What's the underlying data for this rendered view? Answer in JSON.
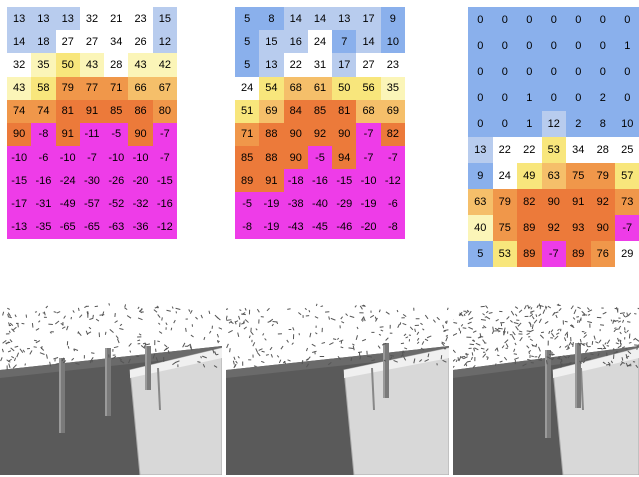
{
  "color_scale": {
    "blue": "#8ab0ec",
    "light_blue": "#b8ccee",
    "white": "#ffffff",
    "light_yellow": "#fbf5b8",
    "yellow": "#f8e67c",
    "light_orange": "#f5bf6a",
    "orange": "#f0974a",
    "dark_orange": "#ec7a3a",
    "magenta": "#ee3ce8"
  },
  "grids": [
    {
      "rows": [
        [
          13,
          13,
          13,
          32,
          21,
          23,
          15
        ],
        [
          14,
          18,
          27,
          27,
          34,
          26,
          12
        ],
        [
          32,
          35,
          50,
          43,
          28,
          43,
          42
        ],
        [
          43,
          58,
          79,
          77,
          71,
          66,
          67
        ],
        [
          74,
          74,
          81,
          91,
          85,
          86,
          80
        ],
        [
          90,
          -8,
          91,
          -11,
          -5,
          90,
          -7
        ],
        [
          -10,
          -6,
          -10,
          -7,
          -10,
          -10,
          -7
        ],
        [
          -15,
          -16,
          -24,
          -30,
          -26,
          -20,
          -15
        ],
        [
          -17,
          -31,
          -49,
          -57,
          -52,
          -32,
          -16
        ],
        [
          -13,
          -35,
          -65,
          -65,
          -63,
          -36,
          -12
        ]
      ]
    },
    {
      "rows": [
        [
          5,
          8,
          14,
          14,
          13,
          17,
          9
        ],
        [
          5,
          15,
          16,
          24,
          7,
          14,
          10
        ],
        [
          5,
          13,
          22,
          31,
          17,
          27,
          23
        ],
        [
          24,
          54,
          68,
          61,
          50,
          56,
          35
        ],
        [
          51,
          69,
          84,
          85,
          81,
          68,
          69
        ],
        [
          71,
          88,
          90,
          92,
          90,
          -7,
          82
        ],
        [
          85,
          88,
          90,
          -5,
          94,
          -7,
          -7
        ],
        [
          89,
          91,
          -18,
          -16,
          -15,
          -10,
          -12
        ],
        [
          -5,
          -19,
          -38,
          -40,
          -29,
          -19,
          -6
        ],
        [
          -8,
          -19,
          -43,
          -45,
          -46,
          -20,
          -8
        ]
      ]
    },
    {
      "rows": [
        [
          0,
          0,
          0,
          0,
          0,
          0,
          0
        ],
        [
          0,
          0,
          0,
          0,
          0,
          0,
          1
        ],
        [
          0,
          0,
          0,
          0,
          0,
          0,
          0
        ],
        [
          0,
          0,
          1,
          0,
          0,
          2,
          0
        ],
        [
          0,
          0,
          1,
          12,
          2,
          8,
          10
        ],
        [
          13,
          22,
          22,
          53,
          34,
          28,
          25
        ],
        [
          9,
          24,
          49,
          63,
          75,
          79,
          57
        ],
        [
          63,
          79,
          82,
          90,
          91,
          92,
          73
        ],
        [
          40,
          75,
          89,
          92,
          93,
          90,
          -7
        ],
        [
          5,
          53,
          89,
          -7,
          89,
          76,
          29
        ]
      ]
    }
  ],
  "scenes": [
    {
      "trees": 3,
      "foliage_density": "sparse"
    },
    {
      "trees": 1,
      "foliage_density": "sparse"
    },
    {
      "trees": 2,
      "foliage_density": "dense"
    }
  ]
}
